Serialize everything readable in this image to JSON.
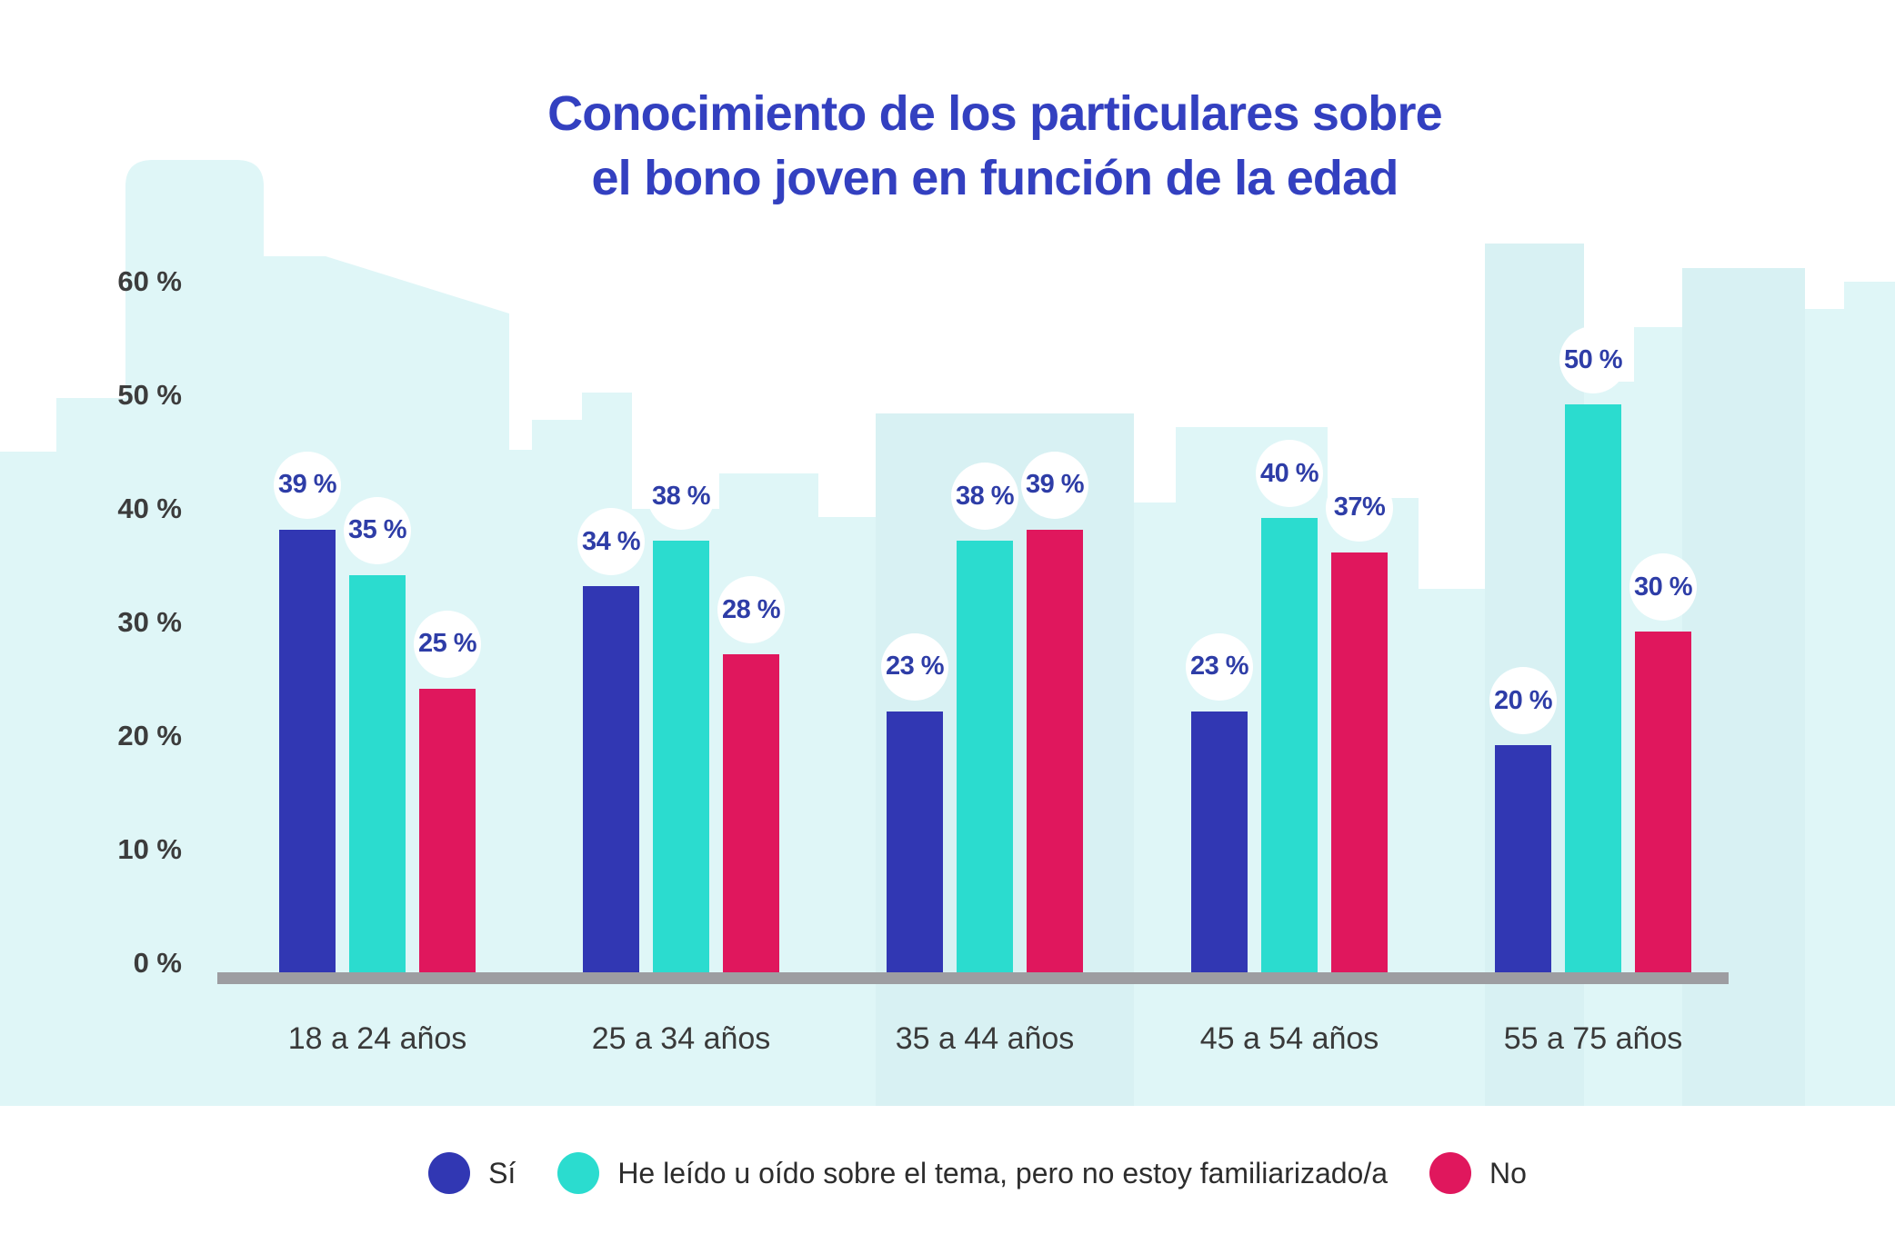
{
  "title": {
    "line1": "Conocimiento de los particulares sobre",
    "line2": "el bono joven en función de la edad"
  },
  "chart_data": {
    "type": "bar",
    "title": "Conocimiento de los particulares sobre el bono joven en función de la edad",
    "categories": [
      "18 a 24 años",
      "25 a 34 años",
      "35 a 44 años",
      "45 a 54 años",
      "55 a 75 años"
    ],
    "series": [
      {
        "name": "Sí",
        "color": "#3137B3",
        "values": [
          39,
          34,
          23,
          23,
          20
        ],
        "labels": [
          "39 %",
          "34 %",
          "23 %",
          "23 %",
          "20 %"
        ]
      },
      {
        "name": "He leído u oído sobre el tema, pero no estoy familiarizado/a",
        "color": "#2BDCCF",
        "values": [
          35,
          38,
          38,
          40,
          50
        ],
        "labels": [
          "35 %",
          "38 %",
          "38 %",
          "40 %",
          "50 %"
        ]
      },
      {
        "name": "No",
        "color": "#E0175D",
        "values": [
          25,
          28,
          39,
          37,
          30
        ],
        "labels": [
          "25 %",
          "28 %",
          "39 %",
          "37%",
          "30 %"
        ]
      }
    ],
    "y_axis": {
      "ticks": [
        "60 %",
        "50 %",
        "40 %",
        "30 %",
        "20 %",
        "10 %",
        "0 %"
      ],
      "min": 0,
      "max": 60
    },
    "grid": false,
    "legend_position": "bottom"
  },
  "legend": {
    "items": [
      {
        "label": "Sí",
        "color": "#3137B3"
      },
      {
        "label": "He leído u oído sobre el tema, pero no estoy familiarizado/a",
        "color": "#2BDCCF"
      },
      {
        "label": "No",
        "color": "#E0175D"
      }
    ]
  },
  "colors": {
    "title_text": "#3340C0",
    "value_label_text": "#2E3DA7",
    "axis_tick_text": "#3C3C3C",
    "category_text": "#3A3A3A",
    "legend_text": "#2D2D2D",
    "axis_bar": "#9D9DA1",
    "background_sky": "#FFFFFF",
    "background_city_light": "#DFF6F7",
    "background_city_dark": "#D8F1F3"
  }
}
